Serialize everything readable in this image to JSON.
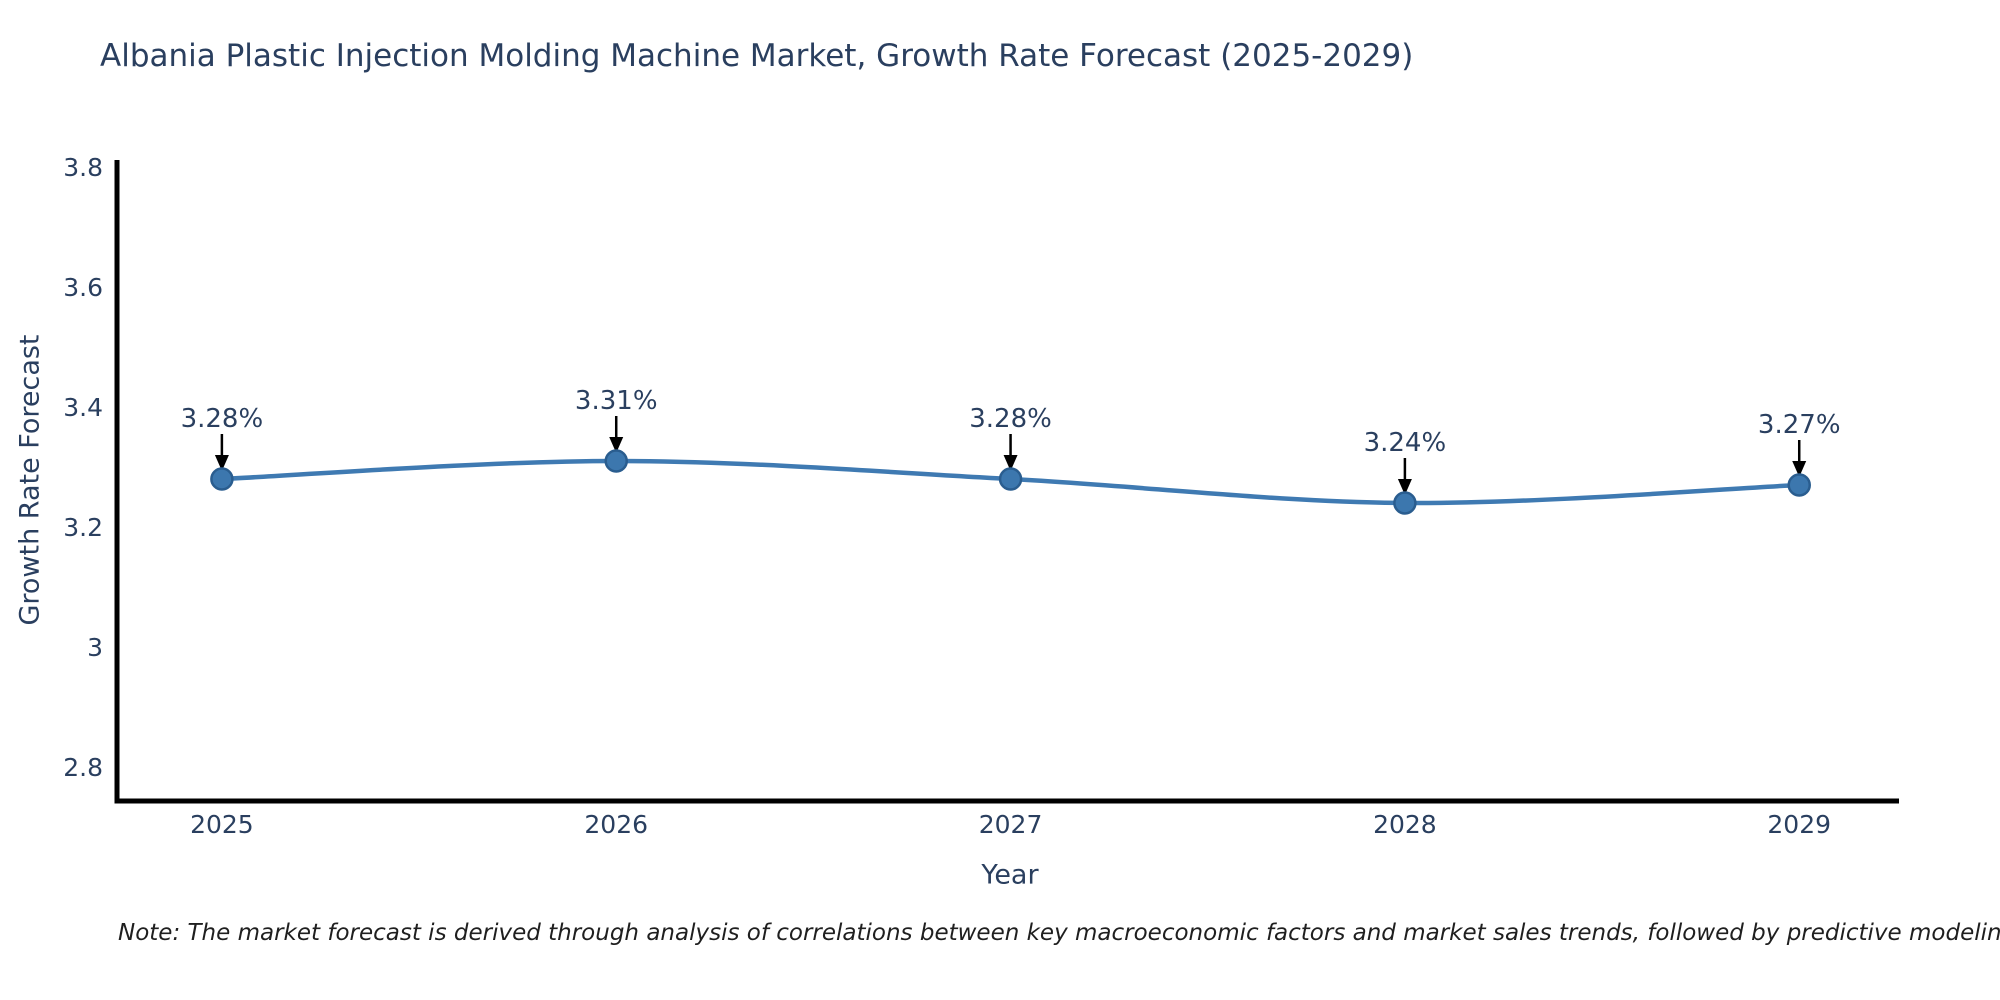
{
  "title": "Albania Plastic Injection Molding Machine Market, Growth Rate Forecast (2025-2029)",
  "note": "Note: The market forecast is derived through analysis of correlations between key macroeconomic factors and market sales trends, followed by predictive modeling to project future sales",
  "chart_data": {
    "type": "line",
    "title": "Albania Plastic Injection Molding Machine Market, Growth Rate Forecast (2025-2029)",
    "xlabel": "Year",
    "ylabel": "Growth Rate Forecast",
    "categories": [
      2025,
      2026,
      2027,
      2028,
      2029
    ],
    "values": [
      3.28,
      3.31,
      3.28,
      3.24,
      3.27
    ],
    "point_labels": [
      "3.28%",
      "3.31%",
      "3.28%",
      "3.24%",
      "3.27%"
    ],
    "x_tick_labels": [
      "2025",
      "2026",
      "2027",
      "2028",
      "2029"
    ],
    "y_tick_values": [
      2.8,
      3.0,
      3.2,
      3.4,
      3.6,
      3.8
    ],
    "y_tick_labels": [
      "2.8",
      "3",
      "3.2",
      "3.4",
      "3.6",
      "3.8"
    ],
    "ylim": [
      2.7433,
      3.8117
    ],
    "xlim": [
      2024.734,
      2029.253
    ],
    "line_shape": "spline",
    "grid": false,
    "legend_position": "none",
    "colors": {
      "line": "#3f7ab2",
      "marker_fill": "#3c77ae",
      "marker_edge": "#2a5d8f",
      "arrow": "#000000",
      "axis_line": "#000000",
      "tick_text": "#2a3f5f",
      "annotation_text": "#2a3f5f"
    }
  }
}
